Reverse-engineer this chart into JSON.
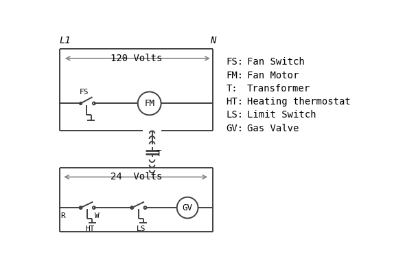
{
  "bg_color": "#ffffff",
  "line_color": "#404040",
  "arrow_color": "#888888",
  "text_color": "#000000",
  "legend_items": [
    [
      "FS:",
      "Fan Switch"
    ],
    [
      "FM:",
      "Fan Motor"
    ],
    [
      "T:",
      "Transformer"
    ],
    [
      "HT:",
      "Heating thermostat"
    ],
    [
      "LS:",
      "Limit Switch"
    ],
    [
      "GV:",
      "Gas Valve"
    ]
  ],
  "L1_label": "L1",
  "N_label": "N",
  "volts120_label": "120 Volts",
  "volts24_label": "24  Volts",
  "T_label": "T",
  "R_label": "R",
  "W_label": "W",
  "HT_label": "HT",
  "LS_label": "LS",
  "FS_label": "FS",
  "FM_label": "FM",
  "GV_label": "GV"
}
